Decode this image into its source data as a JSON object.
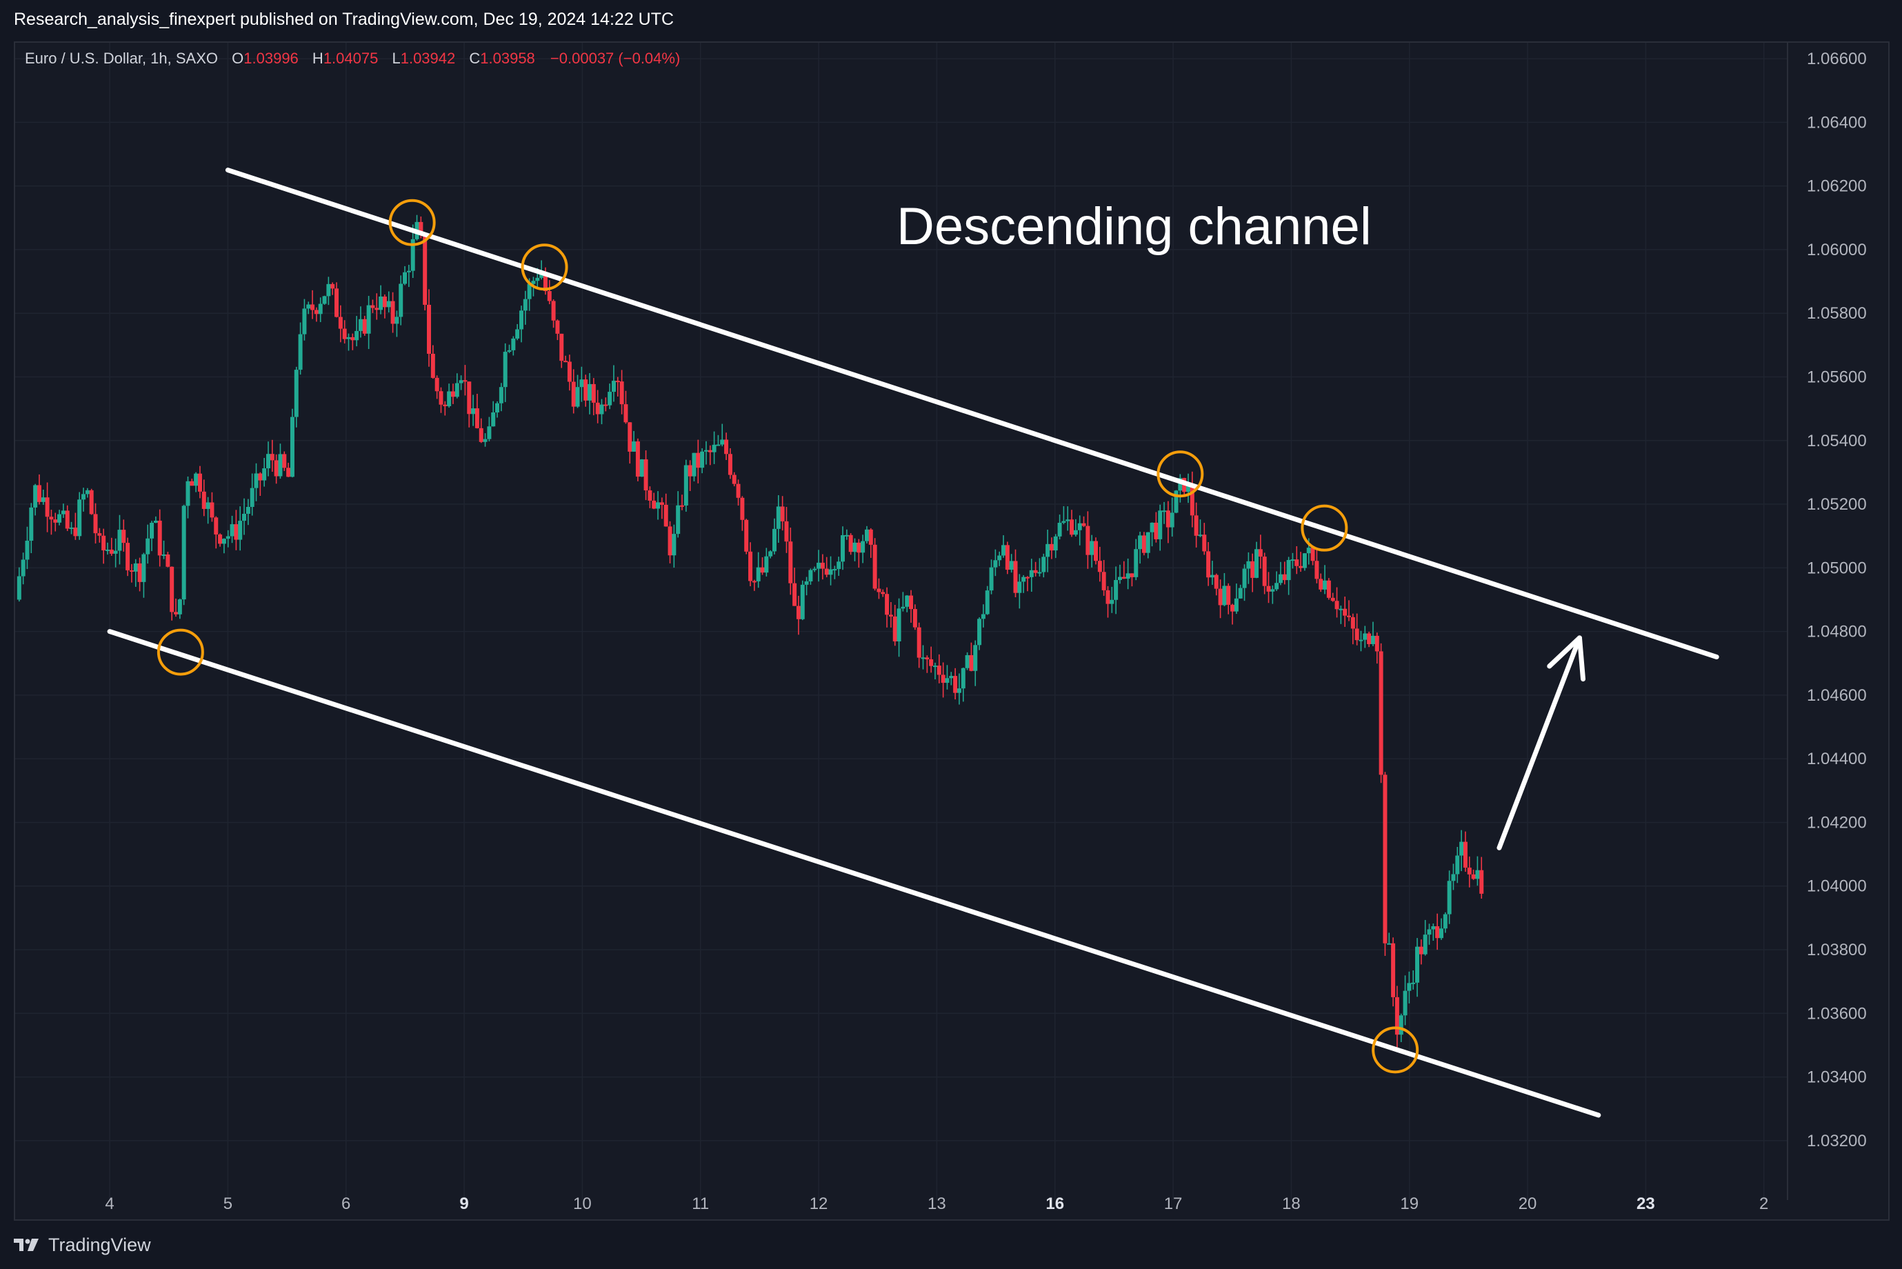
{
  "header": {
    "publisher": "Research_analysis_finexpert published on TradingView.com, Dec 19, 2024 14:22 UTC"
  },
  "legend": {
    "symbol": "Euro / U.S. Dollar, 1h, SAXO",
    "open_label": "O",
    "open": "1.03996",
    "high_label": "H",
    "high": "1.04075",
    "low_label": "L",
    "low": "1.03942",
    "close_label": "C",
    "close": "1.03958",
    "change": "−0.00037 (−0.04%)"
  },
  "footer": {
    "brand": "TradingView"
  },
  "colors": {
    "background": "#161a25",
    "grid": "#1f2430",
    "up": "#22ab94",
    "down": "#f23645",
    "annotation": "#ffffff",
    "marker": "#f59e0b",
    "axis_text": "#b2b5be"
  },
  "chart_data": {
    "type": "candlestick",
    "title": "Descending channel",
    "ylim": [
      1.031,
      1.0665
    ],
    "xlim": [
      0,
      37.5
    ],
    "y_ticks": [
      "1.06600",
      "1.06400",
      "1.06200",
      "1.06000",
      "1.05800",
      "1.05600",
      "1.05400",
      "1.05200",
      "1.05000",
      "1.04800",
      "1.04600",
      "1.04400",
      "1.04200",
      "1.04000",
      "1.03800",
      "1.03600",
      "1.03400",
      "1.03200"
    ],
    "x_ticks": [
      {
        "label": "4",
        "x": 2.0,
        "bold": false
      },
      {
        "label": "5",
        "x": 4.5,
        "bold": false
      },
      {
        "label": "6",
        "x": 7.0,
        "bold": false
      },
      {
        "label": "9",
        "x": 9.5,
        "bold": true
      },
      {
        "label": "10",
        "x": 12.0,
        "bold": false
      },
      {
        "label": "11",
        "x": 14.5,
        "bold": false
      },
      {
        "label": "12",
        "x": 17.0,
        "bold": false
      },
      {
        "label": "13",
        "x": 19.5,
        "bold": false
      },
      {
        "label": "16",
        "x": 22.0,
        "bold": true
      },
      {
        "label": "17",
        "x": 24.5,
        "bold": false
      },
      {
        "label": "18",
        "x": 27.0,
        "bold": false
      },
      {
        "label": "19",
        "x": 29.5,
        "bold": false
      },
      {
        "label": "20",
        "x": 32.0,
        "bold": false
      },
      {
        "label": "23",
        "x": 34.5,
        "bold": true
      },
      {
        "label": "2",
        "x": 37.0,
        "bold": false
      }
    ],
    "price_path": [
      [
        0.0,
        1.049
      ],
      [
        0.4,
        1.0525
      ],
      [
        0.8,
        1.0518
      ],
      [
        1.2,
        1.051
      ],
      [
        1.5,
        1.0525
      ],
      [
        1.8,
        1.0505
      ],
      [
        2.2,
        1.0508
      ],
      [
        2.6,
        1.0498
      ],
      [
        2.9,
        1.0515
      ],
      [
        3.2,
        1.05
      ],
      [
        3.45,
        1.0478
      ],
      [
        3.6,
        1.053
      ],
      [
        3.9,
        1.0528
      ],
      [
        4.2,
        1.0512
      ],
      [
        4.6,
        1.051
      ],
      [
        5.0,
        1.0522
      ],
      [
        5.4,
        1.0535
      ],
      [
        5.8,
        1.0528
      ],
      [
        6.0,
        1.0575
      ],
      [
        6.3,
        1.0582
      ],
      [
        6.6,
        1.0588
      ],
      [
        6.9,
        1.0578
      ],
      [
        7.2,
        1.057
      ],
      [
        7.6,
        1.0585
      ],
      [
        8.0,
        1.0578
      ],
      [
        8.3,
        1.0595
      ],
      [
        8.55,
        1.0608
      ],
      [
        8.8,
        1.056
      ],
      [
        9.1,
        1.055
      ],
      [
        9.4,
        1.0565
      ],
      [
        9.7,
        1.0545
      ],
      [
        10.0,
        1.0538
      ],
      [
        10.4,
        1.057
      ],
      [
        10.8,
        1.0585
      ],
      [
        11.1,
        1.0595
      ],
      [
        11.4,
        1.0575
      ],
      [
        11.8,
        1.0555
      ],
      [
        12.1,
        1.0555
      ],
      [
        12.4,
        1.055
      ],
      [
        12.7,
        1.0565
      ],
      [
        13.0,
        1.054
      ],
      [
        13.3,
        1.0528
      ],
      [
        13.6,
        1.052
      ],
      [
        13.9,
        1.0505
      ],
      [
        14.2,
        1.053
      ],
      [
        14.6,
        1.0535
      ],
      [
        15.0,
        1.0538
      ],
      [
        15.3,
        1.0525
      ],
      [
        15.6,
        1.0495
      ],
      [
        15.9,
        1.05
      ],
      [
        16.2,
        1.052
      ],
      [
        16.5,
        1.0485
      ],
      [
        16.8,
        1.0495
      ],
      [
        17.2,
        1.0502
      ],
      [
        17.6,
        1.0508
      ],
      [
        18.0,
        1.051
      ],
      [
        18.3,
        1.049
      ],
      [
        18.6,
        1.048
      ],
      [
        18.9,
        1.049
      ],
      [
        19.2,
        1.047
      ],
      [
        19.6,
        1.0468
      ],
      [
        20.0,
        1.0462
      ],
      [
        20.3,
        1.0475
      ],
      [
        20.6,
        1.0495
      ],
      [
        20.9,
        1.051
      ],
      [
        21.2,
        1.049
      ],
      [
        21.6,
        1.05
      ],
      [
        22.0,
        1.0512
      ],
      [
        22.4,
        1.0515
      ],
      [
        22.8,
        1.0505
      ],
      [
        23.2,
        1.049
      ],
      [
        23.6,
        1.05
      ],
      [
        24.0,
        1.0512
      ],
      [
        24.4,
        1.0515
      ],
      [
        24.75,
        1.0528
      ],
      [
        25.1,
        1.0505
      ],
      [
        25.4,
        1.0495
      ],
      [
        25.7,
        1.0488
      ],
      [
        26.0,
        1.0498
      ],
      [
        26.3,
        1.0502
      ],
      [
        26.6,
        1.0492
      ],
      [
        26.9,
        1.0498
      ],
      [
        27.3,
        1.0505
      ],
      [
        27.6,
        1.0498
      ],
      [
        27.9,
        1.0492
      ],
      [
        28.2,
        1.0482
      ],
      [
        28.5,
        1.0475
      ],
      [
        28.8,
        1.0485
      ],
      [
        29.0,
        1.0382
      ],
      [
        29.25,
        1.0355
      ],
      [
        29.5,
        1.037
      ],
      [
        29.7,
        1.038
      ],
      [
        30.0,
        1.0385
      ],
      [
        30.3,
        1.0395
      ],
      [
        30.6,
        1.041
      ],
      [
        30.9,
        1.0405
      ],
      [
        31.1,
        1.04
      ]
    ],
    "channel": {
      "upper": [
        [
          4.5,
          1.0625
        ],
        [
          36.0,
          1.0472
        ]
      ],
      "lower": [
        [
          2.0,
          1.048
        ],
        [
          33.5,
          1.0328
        ]
      ]
    },
    "touch_points": [
      {
        "x": 3.5,
        "y": 1.04735
      },
      {
        "x": 8.4,
        "y": 1.06085
      },
      {
        "x": 11.2,
        "y": 1.05945
      },
      {
        "x": 24.65,
        "y": 1.05295
      },
      {
        "x": 27.7,
        "y": 1.05125
      },
      {
        "x": 29.2,
        "y": 1.03485
      }
    ],
    "arrow": {
      "from": [
        31.4,
        1.0412
      ],
      "to": [
        33.1,
        1.0478
      ]
    }
  }
}
